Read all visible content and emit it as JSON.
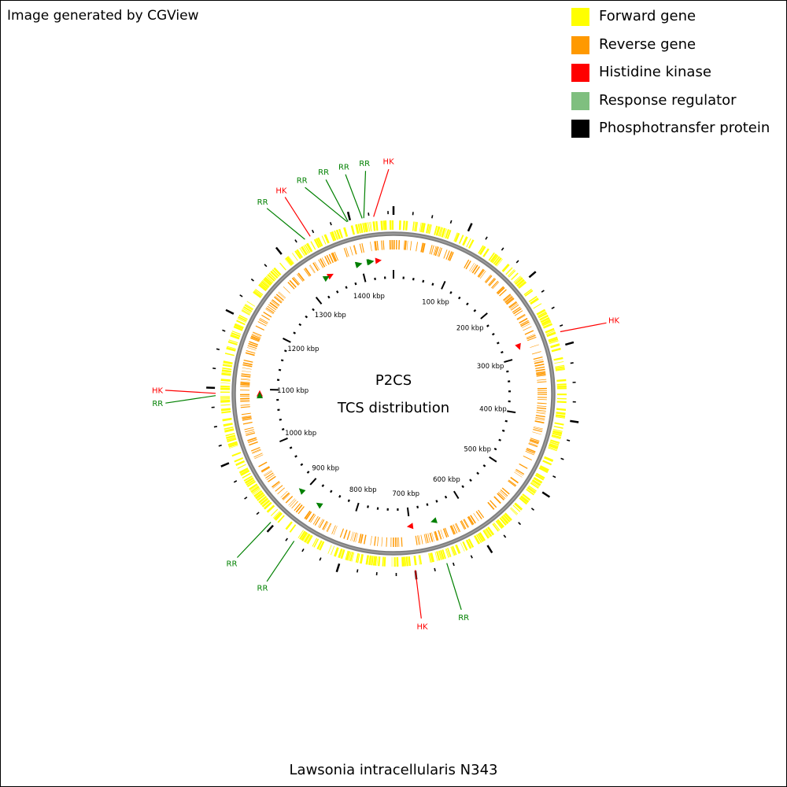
{
  "attribution": "Image generated by CGView",
  "legend": [
    {
      "label": "Forward gene",
      "color": "#ffff00"
    },
    {
      "label": "Reverse gene",
      "color": "#ff9900"
    },
    {
      "label": "Histidine kinase",
      "color": "#ff0000"
    },
    {
      "label": "Response regulator",
      "color": "#7fbf7f"
    },
    {
      "label": "Phosphotransfer protein",
      "color": "#000000"
    }
  ],
  "map": {
    "title_line1": "P2CS",
    "title_line2": "TCS distribution",
    "genome_length_kbp": 1457,
    "tick_labels": [
      {
        "kbp": 100,
        "label": "100 kbp"
      },
      {
        "kbp": 200,
        "label": "200 kbp"
      },
      {
        "kbp": 300,
        "label": "300 kbp"
      },
      {
        "kbp": 400,
        "label": "400 kbp"
      },
      {
        "kbp": 500,
        "label": "500 kbp"
      },
      {
        "kbp": 600,
        "label": "600 kbp"
      },
      {
        "kbp": 700,
        "label": "700 kbp"
      },
      {
        "kbp": 800,
        "label": "800 kbp"
      },
      {
        "kbp": 900,
        "label": "900 kbp"
      },
      {
        "kbp": 1000,
        "label": "1000 kbp"
      },
      {
        "kbp": 1100,
        "label": "1100 kbp"
      },
      {
        "kbp": 1200,
        "label": "1200 kbp"
      },
      {
        "kbp": 1300,
        "label": "1300 kbp"
      },
      {
        "kbp": 1400,
        "label": "1400 kbp"
      }
    ],
    "features": [
      {
        "label": "HK",
        "type": "Histidine kinase",
        "kbp": 1431
      },
      {
        "label": "RR",
        "type": "Response regulator",
        "kbp": 1418
      },
      {
        "label": "RR",
        "type": "Response regulator",
        "kbp": 1416
      },
      {
        "label": "RR",
        "type": "Response regulator",
        "kbp": 1397
      },
      {
        "label": "RR",
        "type": "Response regulator",
        "kbp": 1396
      },
      {
        "label": "HK",
        "type": "Histidine kinase",
        "kbp": 1344
      },
      {
        "label": "RR",
        "type": "Response regulator",
        "kbp": 1336
      },
      {
        "label": "HK",
        "type": "Histidine kinase",
        "kbp": 282
      },
      {
        "label": "RR",
        "type": "Response regulator",
        "kbp": 658
      },
      {
        "label": "HK",
        "type": "Histidine kinase",
        "kbp": 700
      },
      {
        "label": "RR",
        "type": "Response regulator",
        "kbp": 866
      },
      {
        "label": "RR",
        "type": "Response regulator",
        "kbp": 905
      },
      {
        "label": "HK",
        "type": "Histidine kinase",
        "kbp": 1093
      },
      {
        "label": "RR",
        "type": "Response regulator",
        "kbp": 1090
      }
    ]
  },
  "footer": "Lawsonia intracellularis N343"
}
